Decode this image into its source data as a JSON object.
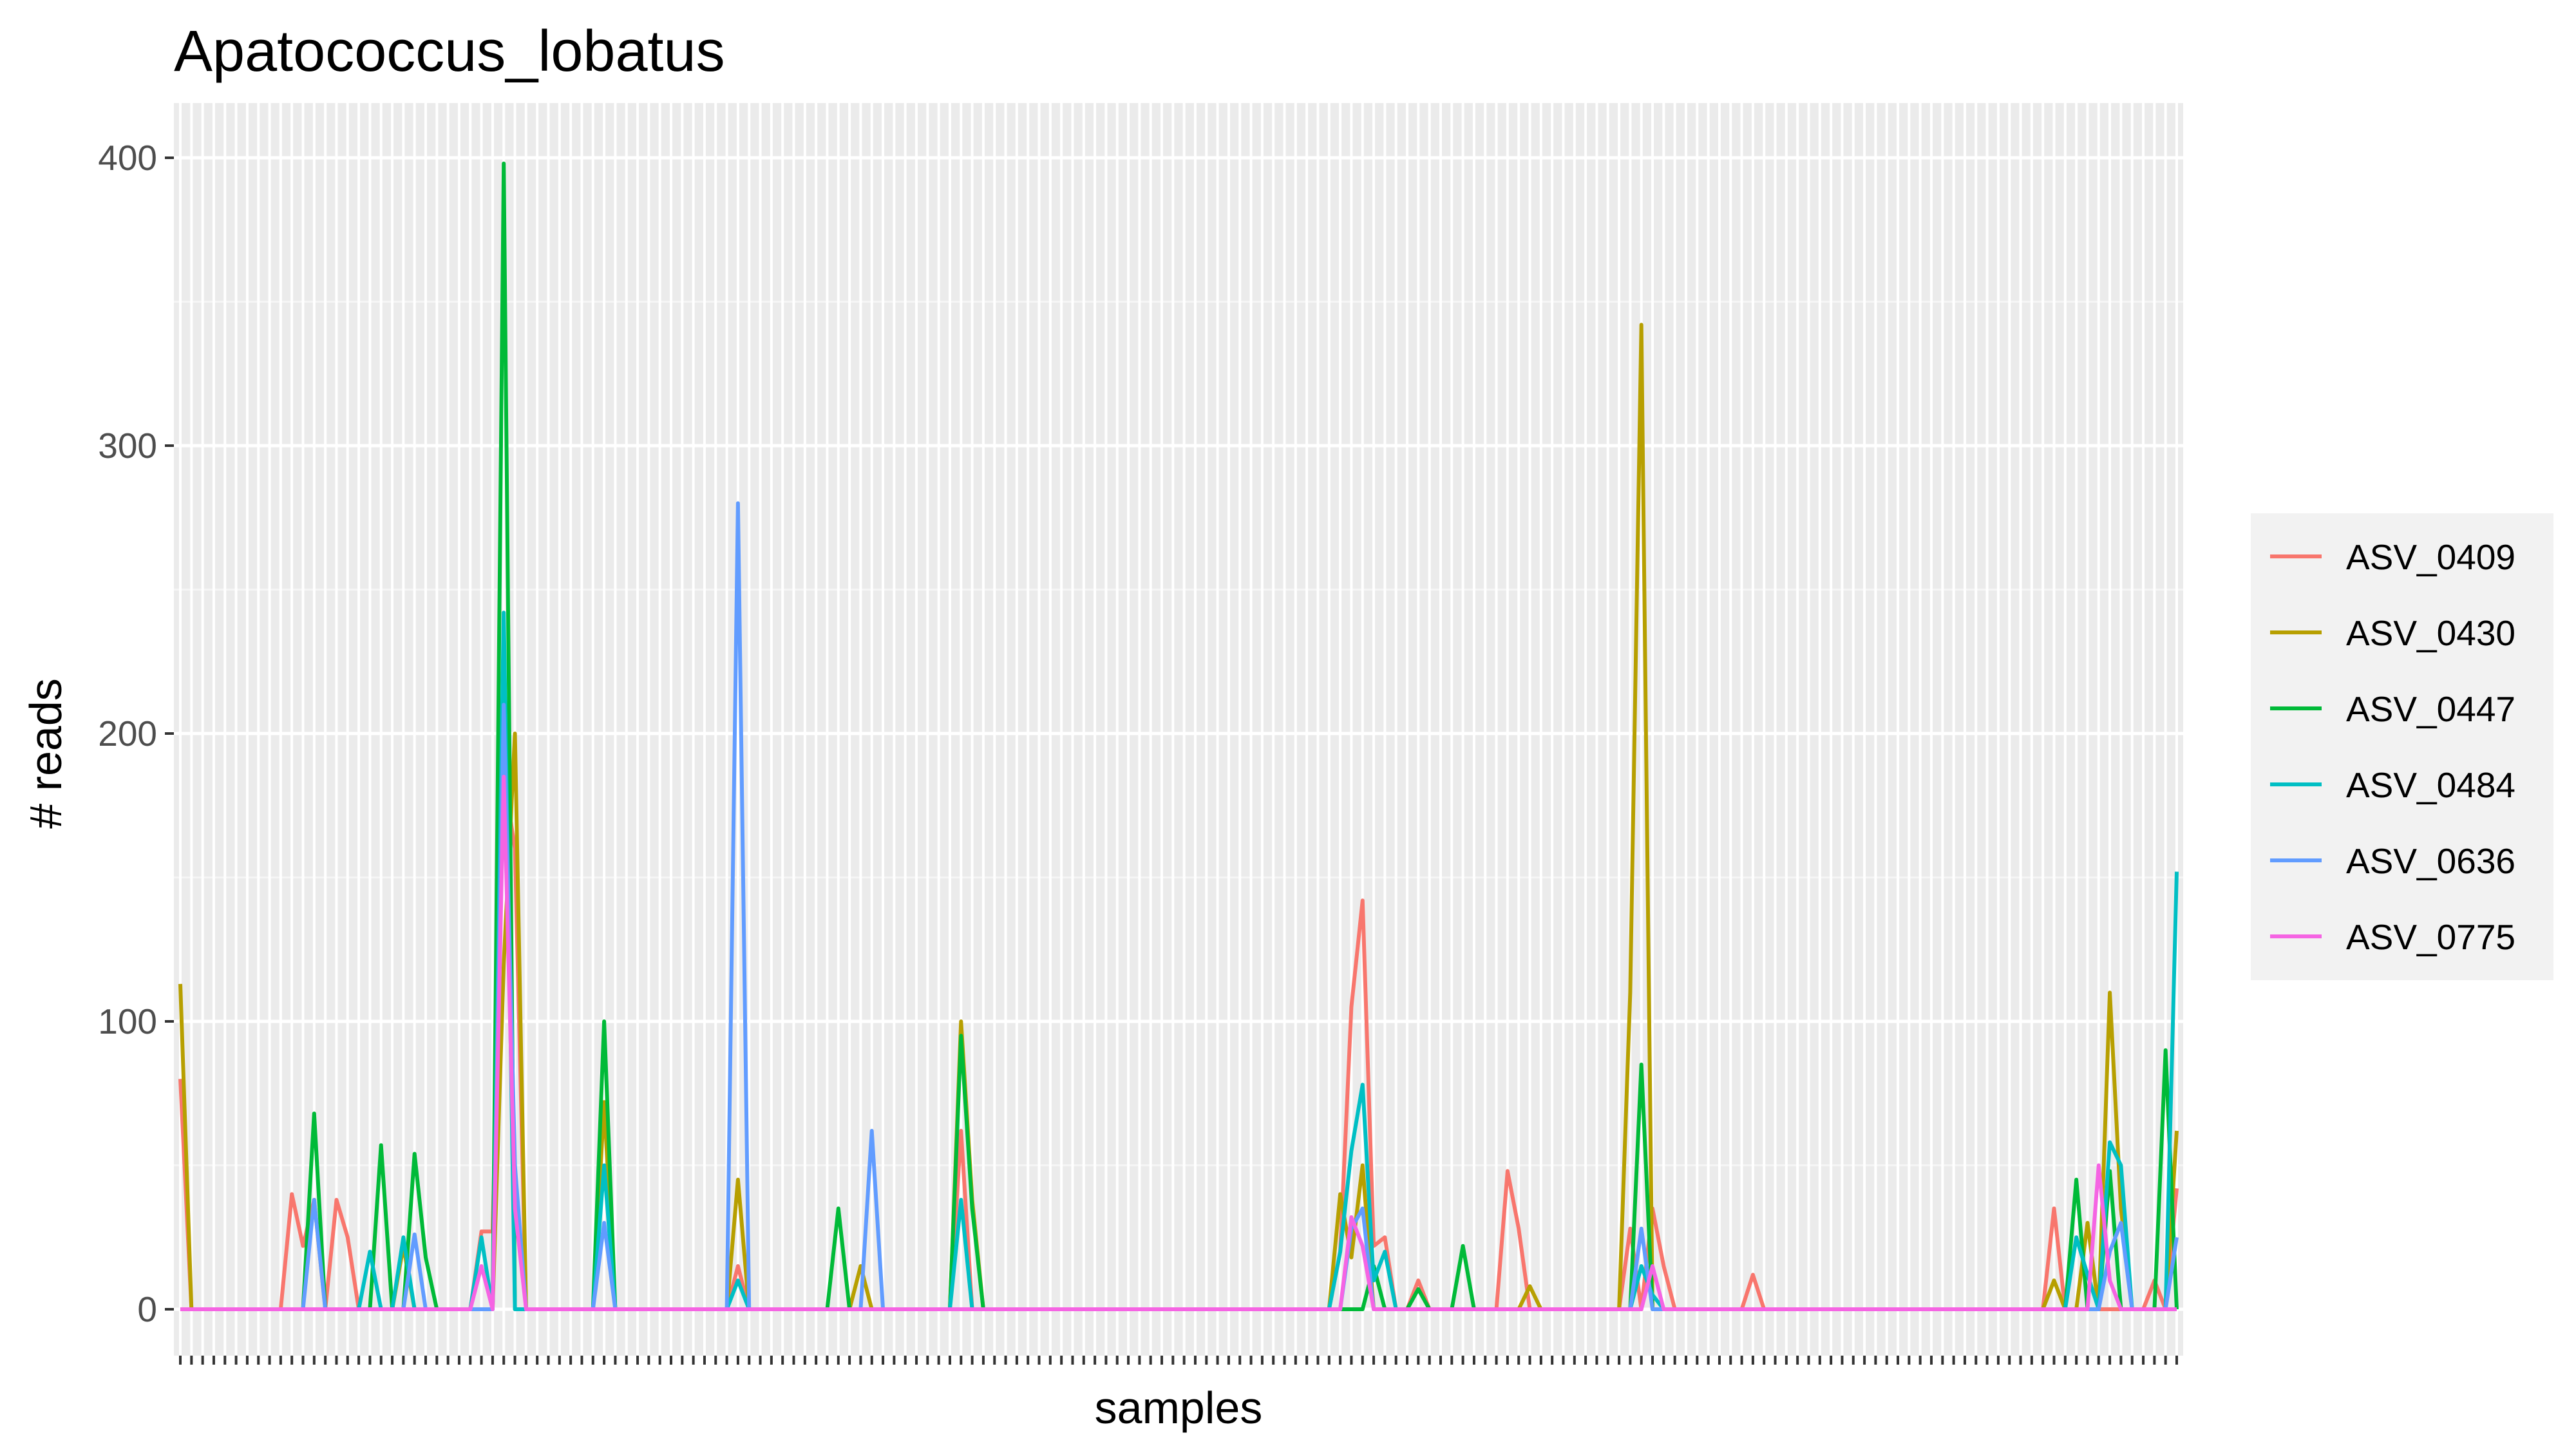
{
  "chart_data": {
    "type": "line",
    "title": "Apatococcus_lobatus",
    "xlabel": "samples",
    "ylabel": "# reads",
    "ylim": [
      -30,
      420
    ],
    "yticks": [
      0,
      100,
      200,
      300,
      400
    ],
    "n_samples": 180,
    "x_tick_labels_visible": false,
    "grid": true,
    "legend_position": "right",
    "series": [
      {
        "name": "ASV_0409",
        "color": "#F8766D",
        "points": [
          [
            1,
            80
          ],
          [
            2,
            0
          ],
          [
            10,
            0
          ],
          [
            11,
            40
          ],
          [
            12,
            22
          ],
          [
            13,
            38
          ],
          [
            14,
            0
          ],
          [
            15,
            38
          ],
          [
            16,
            25
          ],
          [
            17,
            0
          ],
          [
            27,
            0
          ],
          [
            28,
            27
          ],
          [
            29,
            27
          ],
          [
            30,
            185
          ],
          [
            31,
            160
          ],
          [
            32,
            0
          ],
          [
            50,
            0
          ],
          [
            51,
            15
          ],
          [
            52,
            0
          ],
          [
            70,
            0
          ],
          [
            71,
            62
          ],
          [
            72,
            0
          ],
          [
            104,
            0
          ],
          [
            105,
            20
          ],
          [
            106,
            105
          ],
          [
            107,
            142
          ],
          [
            108,
            22
          ],
          [
            109,
            25
          ],
          [
            110,
            0
          ],
          [
            111,
            0
          ],
          [
            112,
            10
          ],
          [
            113,
            0
          ],
          [
            119,
            0
          ],
          [
            120,
            48
          ],
          [
            121,
            28
          ],
          [
            122,
            0
          ],
          [
            130,
            0
          ],
          [
            131,
            28
          ],
          [
            132,
            0
          ],
          [
            133,
            35
          ],
          [
            134,
            15
          ],
          [
            135,
            0
          ],
          [
            141,
            0
          ],
          [
            142,
            12
          ],
          [
            143,
            0
          ],
          [
            168,
            0
          ],
          [
            169,
            35
          ],
          [
            170,
            0
          ],
          [
            177,
            0
          ],
          [
            178,
            10
          ],
          [
            179,
            0
          ],
          [
            180,
            42
          ]
        ]
      },
      {
        "name": "ASV_0430",
        "color": "#B79F00",
        "points": [
          [
            1,
            113
          ],
          [
            2,
            0
          ],
          [
            20,
            0
          ],
          [
            21,
            22
          ],
          [
            22,
            0
          ],
          [
            29,
            0
          ],
          [
            30,
            120
          ],
          [
            31,
            200
          ],
          [
            32,
            0
          ],
          [
            38,
            0
          ],
          [
            39,
            72
          ],
          [
            40,
            0
          ],
          [
            50,
            0
          ],
          [
            51,
            45
          ],
          [
            52,
            0
          ],
          [
            61,
            0
          ],
          [
            62,
            15
          ],
          [
            63,
            0
          ],
          [
            70,
            0
          ],
          [
            71,
            100
          ],
          [
            72,
            38
          ],
          [
            73,
            0
          ],
          [
            104,
            0
          ],
          [
            105,
            40
          ],
          [
            106,
            18
          ],
          [
            107,
            50
          ],
          [
            108,
            0
          ],
          [
            121,
            0
          ],
          [
            122,
            8
          ],
          [
            123,
            0
          ],
          [
            130,
            0
          ],
          [
            131,
            110
          ],
          [
            132,
            342
          ],
          [
            133,
            0
          ],
          [
            168,
            0
          ],
          [
            169,
            10
          ],
          [
            170,
            0
          ],
          [
            171,
            0
          ],
          [
            172,
            30
          ],
          [
            173,
            0
          ],
          [
            174,
            110
          ],
          [
            175,
            35
          ],
          [
            176,
            0
          ],
          [
            179,
            0
          ],
          [
            180,
            62
          ]
        ]
      },
      {
        "name": "ASV_0447",
        "color": "#00BA38",
        "points": [
          [
            1,
            0
          ],
          [
            12,
            0
          ],
          [
            13,
            68
          ],
          [
            14,
            0
          ],
          [
            18,
            0
          ],
          [
            19,
            57
          ],
          [
            20,
            0
          ],
          [
            21,
            0
          ],
          [
            22,
            54
          ],
          [
            23,
            18
          ],
          [
            24,
            0
          ],
          [
            29,
            0
          ],
          [
            30,
            398
          ],
          [
            31,
            0
          ],
          [
            38,
            0
          ],
          [
            39,
            100
          ],
          [
            40,
            0
          ],
          [
            59,
            0
          ],
          [
            60,
            35
          ],
          [
            61,
            0
          ],
          [
            70,
            0
          ],
          [
            71,
            95
          ],
          [
            72,
            35
          ],
          [
            73,
            0
          ],
          [
            107,
            0
          ],
          [
            108,
            15
          ],
          [
            109,
            0
          ],
          [
            111,
            0
          ],
          [
            112,
            7
          ],
          [
            113,
            0
          ],
          [
            115,
            0
          ],
          [
            116,
            22
          ],
          [
            117,
            0
          ],
          [
            131,
            0
          ],
          [
            132,
            85
          ],
          [
            133,
            0
          ],
          [
            170,
            0
          ],
          [
            171,
            45
          ],
          [
            172,
            0
          ],
          [
            173,
            0
          ],
          [
            174,
            48
          ],
          [
            175,
            0
          ],
          [
            178,
            0
          ],
          [
            179,
            90
          ],
          [
            180,
            0
          ]
        ]
      },
      {
        "name": "ASV_0484",
        "color": "#00BFC4",
        "points": [
          [
            1,
            0
          ],
          [
            17,
            0
          ],
          [
            18,
            20
          ],
          [
            19,
            0
          ],
          [
            20,
            0
          ],
          [
            21,
            25
          ],
          [
            22,
            0
          ],
          [
            27,
            0
          ],
          [
            28,
            25
          ],
          [
            29,
            0
          ],
          [
            30,
            242
          ],
          [
            31,
            0
          ],
          [
            38,
            0
          ],
          [
            39,
            50
          ],
          [
            40,
            0
          ],
          [
            50,
            0
          ],
          [
            51,
            10
          ],
          [
            52,
            0
          ],
          [
            70,
            0
          ],
          [
            71,
            38
          ],
          [
            72,
            0
          ],
          [
            104,
            0
          ],
          [
            105,
            20
          ],
          [
            106,
            55
          ],
          [
            107,
            78
          ],
          [
            108,
            10
          ],
          [
            109,
            20
          ],
          [
            110,
            0
          ],
          [
            131,
            0
          ],
          [
            132,
            15
          ],
          [
            133,
            5
          ],
          [
            134,
            0
          ],
          [
            170,
            0
          ],
          [
            171,
            25
          ],
          [
            172,
            12
          ],
          [
            173,
            0
          ],
          [
            174,
            58
          ],
          [
            175,
            50
          ],
          [
            176,
            0
          ],
          [
            179,
            0
          ],
          [
            180,
            152
          ]
        ]
      },
      {
        "name": "ASV_0636",
        "color": "#619CFF",
        "points": [
          [
            1,
            0
          ],
          [
            12,
            0
          ],
          [
            13,
            38
          ],
          [
            14,
            0
          ],
          [
            21,
            0
          ],
          [
            22,
            26
          ],
          [
            23,
            0
          ],
          [
            29,
            0
          ],
          [
            30,
            210
          ],
          [
            31,
            50
          ],
          [
            32,
            0
          ],
          [
            38,
            0
          ],
          [
            39,
            30
          ],
          [
            40,
            0
          ],
          [
            50,
            0
          ],
          [
            51,
            280
          ],
          [
            52,
            0
          ],
          [
            62,
            0
          ],
          [
            63,
            62
          ],
          [
            64,
            0
          ],
          [
            105,
            0
          ],
          [
            106,
            28
          ],
          [
            107,
            35
          ],
          [
            108,
            0
          ],
          [
            131,
            0
          ],
          [
            132,
            28
          ],
          [
            133,
            0
          ],
          [
            173,
            0
          ],
          [
            174,
            20
          ],
          [
            175,
            30
          ],
          [
            176,
            0
          ],
          [
            179,
            0
          ],
          [
            180,
            25
          ]
        ]
      },
      {
        "name": "ASV_0775",
        "color": "#F564E3",
        "points": [
          [
            1,
            0
          ],
          [
            27,
            0
          ],
          [
            28,
            15
          ],
          [
            29,
            0
          ],
          [
            30,
            185
          ],
          [
            31,
            35
          ],
          [
            32,
            0
          ],
          [
            105,
            0
          ],
          [
            106,
            32
          ],
          [
            107,
            22
          ],
          [
            108,
            0
          ],
          [
            132,
            0
          ],
          [
            133,
            15
          ],
          [
            134,
            0
          ],
          [
            172,
            0
          ],
          [
            173,
            50
          ],
          [
            174,
            10
          ],
          [
            175,
            0
          ],
          [
            180,
            0
          ]
        ]
      }
    ]
  }
}
